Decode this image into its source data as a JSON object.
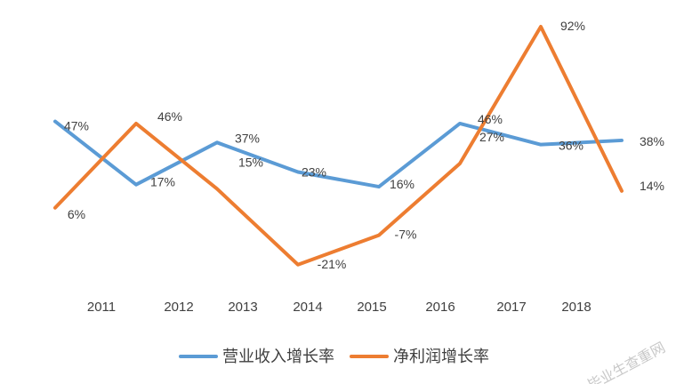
{
  "chart_data": {
    "type": "line",
    "categories": [
      "2011",
      "2012",
      "2013",
      "2014",
      "2015",
      "2016",
      "2017",
      "2018"
    ],
    "series": [
      {
        "name": "营业收入增长率",
        "color": "#5B9BD5",
        "values": [
          47,
          17,
          37,
          23,
          16,
          46,
          36,
          38
        ],
        "labels": [
          "47%",
          "17%",
          "37%",
          "23%",
          "16%",
          "46%",
          "36%",
          "38%"
        ]
      },
      {
        "name": "净利润增长率",
        "color": "#ED7D31",
        "values": [
          6,
          46,
          15,
          -21,
          -7,
          27,
          92,
          14
        ],
        "labels": [
          "6%",
          "46%",
          "15%",
          "-21%",
          "-7%",
          "27%",
          "92%",
          "14%"
        ]
      }
    ],
    "legend_position": "bottom",
    "grid": false,
    "axes_lines": false
  },
  "watermark": "毕业生查重网"
}
